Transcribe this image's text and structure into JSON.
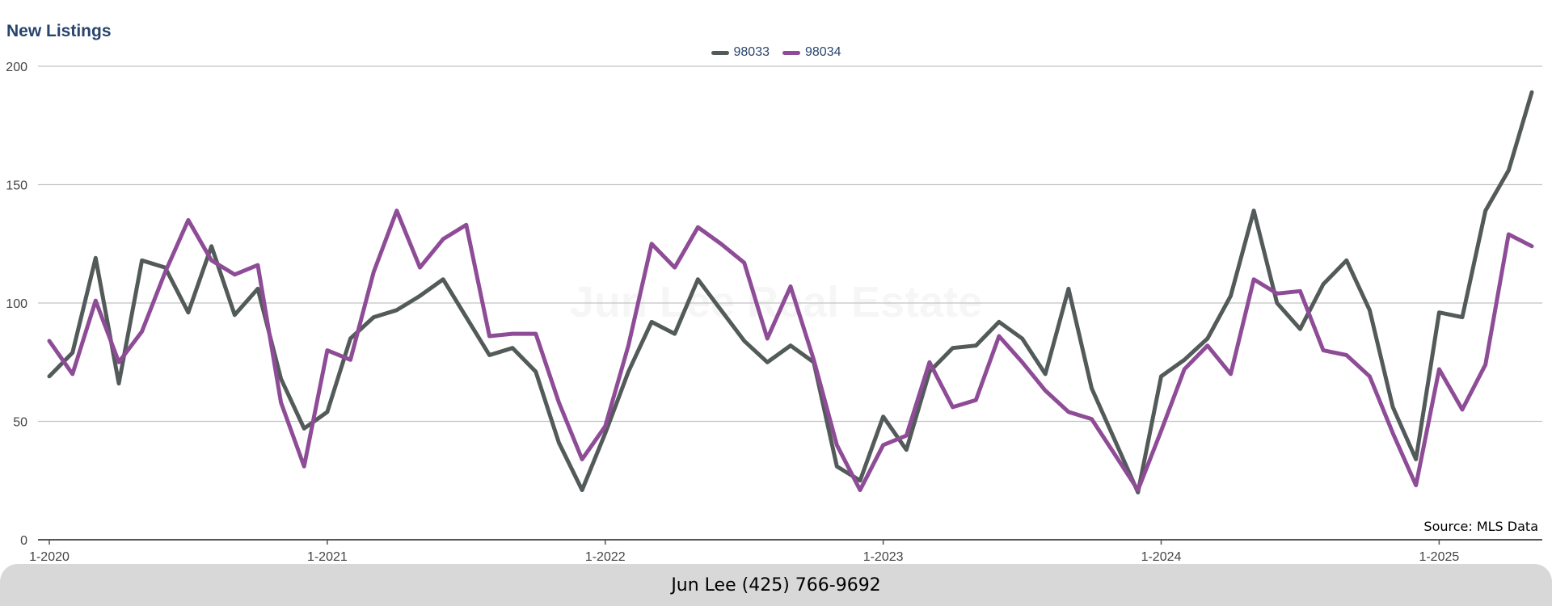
{
  "header": {
    "title": "New Listings",
    "source": "Source: MLS Data",
    "watermark": "Jun Lee Real Estate"
  },
  "footer": {
    "contact": "Jun Lee (425) 766-9692"
  },
  "colors": {
    "series_98033": "#535a5a",
    "series_98034": "#8e4c97",
    "title": "#27446e",
    "grid": "#c4c4c4",
    "footer_bg": "#d8d8d8"
  },
  "chart_data": {
    "type": "line",
    "title": "New Listings",
    "xlabel": "",
    "ylabel": "",
    "ylim": [
      0,
      200
    ],
    "yticks": [
      0,
      50,
      100,
      150,
      200
    ],
    "grid": true,
    "legend_position": "top-center",
    "xtick_labels": [
      "1-2020",
      "1-2021",
      "1-2022",
      "1-2023",
      "1-2024",
      "1-2025"
    ],
    "x_start": "2020-01",
    "x": [
      "2020-01",
      "2020-02",
      "2020-03",
      "2020-04",
      "2020-05",
      "2020-06",
      "2020-07",
      "2020-08",
      "2020-09",
      "2020-10",
      "2020-11",
      "2020-12",
      "2021-01",
      "2021-02",
      "2021-03",
      "2021-04",
      "2021-05",
      "2021-06",
      "2021-07",
      "2021-08",
      "2021-09",
      "2021-10",
      "2021-11",
      "2021-12",
      "2022-01",
      "2022-02",
      "2022-03",
      "2022-04",
      "2022-05",
      "2022-06",
      "2022-07",
      "2022-08",
      "2022-09",
      "2022-10",
      "2022-11",
      "2022-12",
      "2023-01",
      "2023-02",
      "2023-03",
      "2023-04",
      "2023-05",
      "2023-06",
      "2023-07",
      "2023-08",
      "2023-09",
      "2023-10",
      "2023-11",
      "2023-12",
      "2024-01",
      "2024-02",
      "2024-03",
      "2024-04",
      "2024-05",
      "2024-06",
      "2024-07",
      "2024-08",
      "2024-09",
      "2024-10",
      "2024-11",
      "2024-12",
      "2025-01",
      "2025-02",
      "2025-03",
      "2025-04",
      "2025-05"
    ],
    "series": [
      {
        "name": "98033",
        "values": [
          69,
          79,
          119,
          66,
          118,
          115,
          96,
          124,
          95,
          106,
          68,
          47,
          54,
          85,
          94,
          97,
          103,
          110,
          94,
          78,
          81,
          71,
          41,
          21,
          45,
          71,
          92,
          87,
          110,
          97,
          84,
          75,
          82,
          75,
          31,
          25,
          52,
          38,
          71,
          81,
          82,
          92,
          85,
          70,
          106,
          64,
          42,
          20,
          69,
          76,
          85,
          103,
          139,
          100,
          89,
          108,
          118,
          97,
          56,
          34,
          96,
          94,
          139,
          156,
          189
        ]
      },
      {
        "name": "98034",
        "values": [
          84,
          70,
          101,
          75,
          88,
          113,
          135,
          118,
          112,
          116,
          58,
          31,
          80,
          76,
          113,
          139,
          115,
          127,
          133,
          86,
          87,
          87,
          58,
          34,
          48,
          82,
          125,
          115,
          132,
          125,
          117,
          85,
          107,
          76,
          40,
          21,
          40,
          44,
          75,
          56,
          59,
          86,
          75,
          63,
          54,
          51,
          36,
          21,
          46,
          72,
          82,
          70,
          110,
          104,
          105,
          80,
          78,
          69,
          45,
          23,
          72,
          55,
          74,
          129,
          124
        ]
      }
    ]
  }
}
